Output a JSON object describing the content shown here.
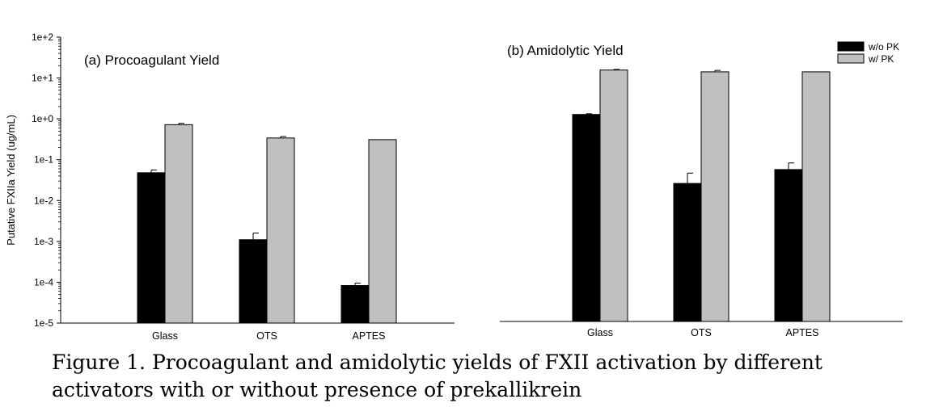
{
  "caption": "Figure 1. Procoagulant and amidolytic yields of FXII activation by different activators with or without presence of prekallikrein",
  "colors": {
    "without_pk": "#000000",
    "with_pk": "#c0c0c0"
  },
  "chart_data": [
    {
      "type": "bar",
      "title": "(a) Procoagulant Yield",
      "ylabel": "Putative FXIIa Yield (ug/mL)",
      "yscale": "log",
      "ylim": [
        1e-05,
        100
      ],
      "yticks": [
        "1e-5",
        "1e-4",
        "1e-3",
        "1e-2",
        "1e-1",
        "1e+0",
        "1e+1",
        "1e+2"
      ],
      "categories": [
        "Glass",
        "OTS",
        "APTES"
      ],
      "series": [
        {
          "key": "without_pk",
          "values": [
            0.048,
            0.0011,
            8.3e-05
          ],
          "error": [
            0.008,
            0.0005,
            1.2e-05
          ]
        },
        {
          "key": "with_pk",
          "values": [
            0.72,
            0.34,
            0.31
          ],
          "error": [
            0.06,
            0.03,
            0.0
          ]
        }
      ]
    },
    {
      "type": "bar",
      "title": "(b) Amidolytic Yield",
      "yscale": "log",
      "ylim": [
        1e-05,
        100
      ],
      "categories": [
        "Glass",
        "OTS",
        "APTES"
      ],
      "legend": {
        "position": "top-right",
        "labels": [
          "w/o PK",
          "w/ PK"
        ]
      },
      "series": [
        {
          "key": "without_pk",
          "name": "w/o PK",
          "values": [
            1.25,
            0.025,
            0.055
          ],
          "error": [
            0.05,
            0.02,
            0.025
          ]
        },
        {
          "key": "with_pk",
          "name": "w/ PK",
          "values": [
            15.5,
            14.0,
            14.0
          ],
          "error": [
            0.6,
            1.2,
            0.0
          ]
        }
      ]
    }
  ]
}
